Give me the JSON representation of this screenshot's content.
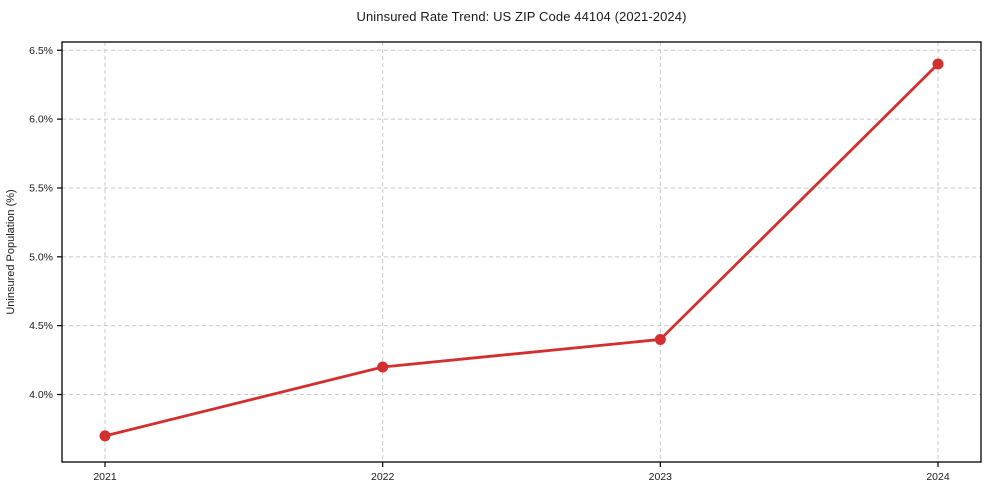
{
  "chart_data": {
    "type": "line",
    "title": "Uninsured Rate Trend: US ZIP Code 44104 (2021-2024)",
    "xlabel": "",
    "ylabel": "Uninsured Population (%)",
    "categories": [
      "2021",
      "2022",
      "2023",
      "2024"
    ],
    "series": [
      {
        "name": "Uninsured rate",
        "values": [
          3.7,
          4.2,
          4.4,
          6.4
        ]
      }
    ],
    "yticks": [
      4.0,
      4.5,
      5.0,
      5.5,
      6.0,
      6.5
    ],
    "ytick_labels": [
      "4.0%",
      "4.5%",
      "5.0%",
      "5.5%",
      "6.0%",
      "6.5%"
    ],
    "ylim": [
      3.51,
      6.56
    ],
    "grid": true,
    "grid_style": "dashed",
    "legend_position": "none",
    "colors": {
      "line": "#d32f2f",
      "marker": "#d32f2f",
      "grid": "#c9c9c9",
      "spine": "#000000",
      "text": "#1a1a1a",
      "background": "#ffffff"
    }
  }
}
